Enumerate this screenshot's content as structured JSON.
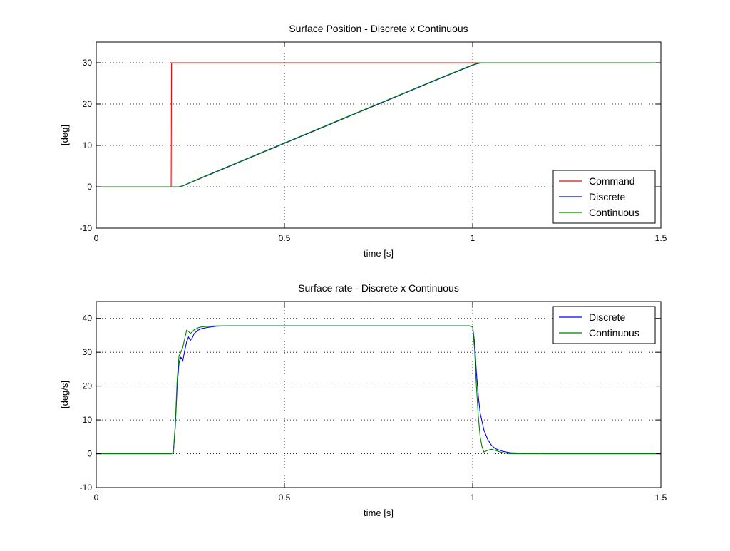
{
  "chart_data": [
    {
      "type": "line",
      "title": "Surface Position - Discrete x Continuous",
      "xlabel": "time [s]",
      "ylabel": "[deg]",
      "xlim": [
        0,
        1.5
      ],
      "ylim": [
        -10,
        35
      ],
      "xticks": [
        0,
        0.5,
        1,
        1.5
      ],
      "xtick_labels": [
        "0",
        "0.5",
        "1",
        "1.5"
      ],
      "yticks": [
        -10,
        0,
        10,
        20,
        30
      ],
      "ytick_labels": [
        "-10",
        "0",
        "10",
        "20",
        "30"
      ],
      "grid": true,
      "legend_position": "bottom-right",
      "series": [
        {
          "name": "Command",
          "color": "#ff0000",
          "x": [
            0,
            0.199,
            0.2,
            1.5
          ],
          "y": [
            0,
            0,
            30,
            30
          ]
        },
        {
          "name": "Discrete",
          "color": "#0000ff",
          "x": [
            0,
            0.2,
            0.21,
            0.22,
            0.23,
            0.24,
            0.25,
            0.3,
            0.4,
            0.5,
            0.6,
            0.7,
            0.8,
            0.9,
            1.0,
            1.01,
            1.02,
            1.03,
            1.04,
            1.05,
            1.5
          ],
          "y": [
            0,
            0,
            0,
            0,
            0.2,
            0.6,
            1.0,
            2.9,
            6.7,
            10.5,
            14.3,
            18.1,
            21.9,
            25.7,
            29.4,
            29.7,
            29.9,
            30.0,
            30.0,
            30.0,
            30.0
          ]
        },
        {
          "name": "Continuous",
          "color": "#008000",
          "x": [
            0,
            0.2,
            0.21,
            0.22,
            0.23,
            0.24,
            0.25,
            0.3,
            0.4,
            0.5,
            0.6,
            0.7,
            0.8,
            0.9,
            1.0,
            1.01,
            1.02,
            1.03,
            1.04,
            1.05,
            1.5
          ],
          "y": [
            0,
            0,
            0,
            0,
            0.25,
            0.65,
            1.05,
            3.0,
            6.8,
            10.6,
            14.4,
            18.2,
            22.0,
            25.8,
            29.5,
            29.8,
            29.95,
            30.0,
            30.0,
            30.0,
            30.0
          ]
        }
      ]
    },
    {
      "type": "line",
      "title": "Surface rate - Discrete x Continuous",
      "xlabel": "time [s]",
      "ylabel": "[deg/s]",
      "xlim": [
        0,
        1.5
      ],
      "ylim": [
        -10,
        45
      ],
      "xticks": [
        0,
        0.5,
        1,
        1.5
      ],
      "xtick_labels": [
        "0",
        "0.5",
        "1",
        "1.5"
      ],
      "yticks": [
        -10,
        0,
        10,
        20,
        30,
        40
      ],
      "ytick_labels": [
        "-10",
        "0",
        "10",
        "20",
        "30",
        "40"
      ],
      "grid": true,
      "legend_position": "top-right",
      "series": [
        {
          "name": "Discrete",
          "color": "#0000ff",
          "x": [
            0,
            0.2,
            0.205,
            0.21,
            0.215,
            0.22,
            0.225,
            0.23,
            0.235,
            0.24,
            0.245,
            0.25,
            0.255,
            0.26,
            0.27,
            0.28,
            0.29,
            0.3,
            0.32,
            0.35,
            0.4,
            0.5,
            0.6,
            0.7,
            0.8,
            0.9,
            0.99,
            1.0,
            1.005,
            1.01,
            1.015,
            1.02,
            1.03,
            1.04,
            1.05,
            1.06,
            1.08,
            1.1,
            1.15,
            1.2,
            1.3,
            1.5
          ],
          "y": [
            0,
            0,
            0.5,
            8,
            20,
            27,
            28.5,
            27.5,
            30.5,
            33,
            34.5,
            33.5,
            34.2,
            35.5,
            36.5,
            37,
            37.2,
            37.4,
            37.7,
            37.8,
            37.8,
            37.8,
            37.8,
            37.8,
            37.8,
            37.8,
            37.8,
            37.6,
            33,
            24,
            17,
            12,
            7,
            4.2,
            2.5,
            1.5,
            0.7,
            0.3,
            0.1,
            0,
            0,
            0
          ]
        },
        {
          "name": "Continuous",
          "color": "#008000",
          "x": [
            0,
            0.2,
            0.205,
            0.21,
            0.215,
            0.22,
            0.225,
            0.23,
            0.235,
            0.24,
            0.245,
            0.25,
            0.26,
            0.27,
            0.28,
            0.3,
            0.32,
            0.35,
            0.4,
            0.5,
            0.6,
            0.7,
            0.8,
            0.9,
            0.99,
            1.0,
            1.005,
            1.01,
            1.015,
            1.02,
            1.025,
            1.03,
            1.04,
            1.05,
            1.06,
            1.08,
            1.1,
            1.5
          ],
          "y": [
            0,
            0,
            0.6,
            9,
            22,
            29,
            30,
            31.5,
            34,
            36.5,
            36.2,
            35.5,
            36.6,
            37.2,
            37.5,
            37.7,
            37.8,
            37.8,
            37.8,
            37.8,
            37.8,
            37.8,
            37.8,
            37.8,
            37.8,
            37.5,
            31,
            20,
            11,
            5,
            2,
            0.5,
            1.0,
            1.3,
            1.0,
            0.3,
            0,
            0
          ]
        }
      ]
    }
  ]
}
